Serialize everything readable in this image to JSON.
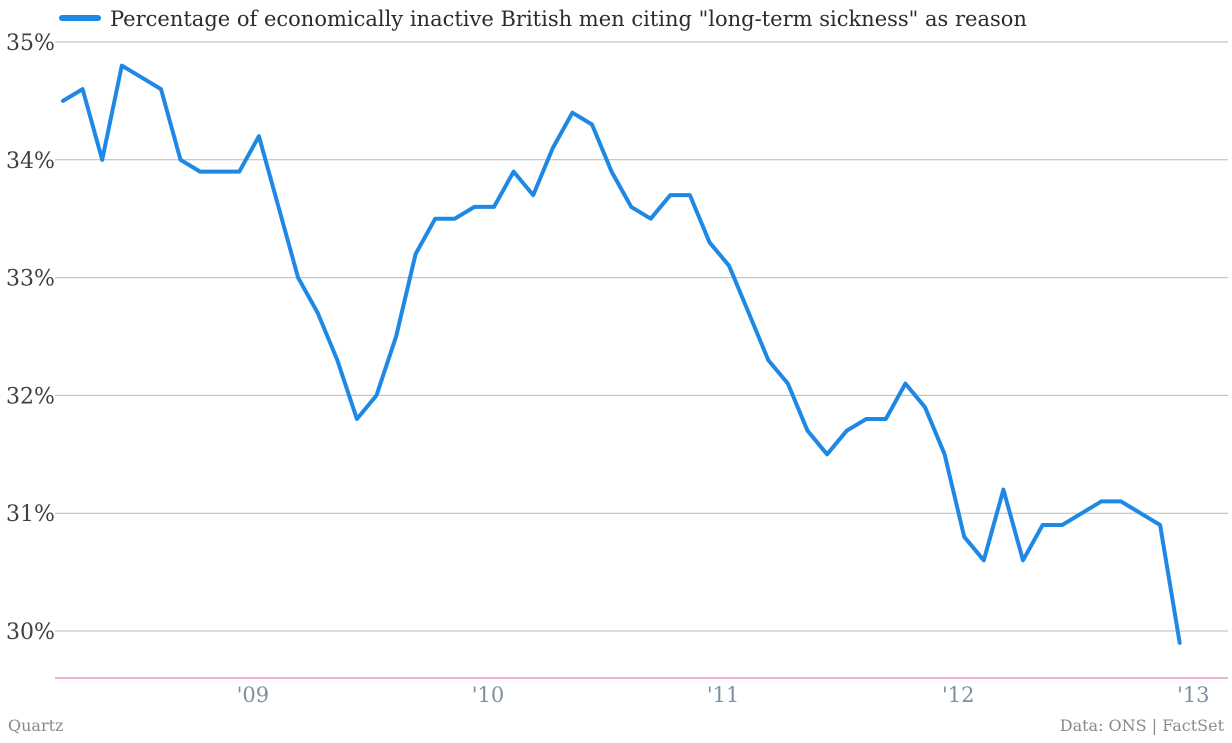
{
  "footer": {
    "brand": "Quartz",
    "source": "Data: ONS | FactSet"
  },
  "colors": {
    "series": "#1f88e5",
    "grid": "#b9b9b9",
    "baseline": "#e060b0"
  },
  "chart_data": {
    "type": "line",
    "legend_position": "top-left",
    "grid": true,
    "ylim": [
      29.6,
      35
    ],
    "y_ticks": [
      30,
      31,
      32,
      33,
      34,
      35
    ],
    "y_tick_labels": [
      "30%",
      "31%",
      "32%",
      "33%",
      "34%",
      "35%"
    ],
    "x_tick_labels": [
      "'09",
      "'10",
      "'11",
      "'12",
      "'13"
    ],
    "x_tick_dates": [
      "2009-01",
      "2010-01",
      "2011-01",
      "2012-01",
      "2013-01"
    ],
    "xlim": [
      "2008-03",
      "2013-03"
    ],
    "series": [
      {
        "name": "Percentage of economically inactive British men citing \"long-term sickness\" as reason",
        "points": [
          [
            "2008-03",
            34.5
          ],
          [
            "2008-04",
            34.6
          ],
          [
            "2008-05",
            34.0
          ],
          [
            "2008-06",
            34.8
          ],
          [
            "2008-07",
            34.7
          ],
          [
            "2008-08",
            34.6
          ],
          [
            "2008-09",
            34.0
          ],
          [
            "2008-10",
            33.9
          ],
          [
            "2008-11",
            33.9
          ],
          [
            "2008-12",
            33.9
          ],
          [
            "2009-01",
            34.2
          ],
          [
            "2009-02",
            33.6
          ],
          [
            "2009-03",
            33.0
          ],
          [
            "2009-04",
            32.7
          ],
          [
            "2009-05",
            32.3
          ],
          [
            "2009-06",
            31.8
          ],
          [
            "2009-07",
            32.0
          ],
          [
            "2009-08",
            32.5
          ],
          [
            "2009-09",
            33.2
          ],
          [
            "2009-10",
            33.5
          ],
          [
            "2009-11",
            33.5
          ],
          [
            "2009-12",
            33.6
          ],
          [
            "2010-01",
            33.6
          ],
          [
            "2010-02",
            33.9
          ],
          [
            "2010-03",
            33.7
          ],
          [
            "2010-04",
            34.1
          ],
          [
            "2010-05",
            34.4
          ],
          [
            "2010-06",
            34.3
          ],
          [
            "2010-07",
            33.9
          ],
          [
            "2010-08",
            33.6
          ],
          [
            "2010-09",
            33.5
          ],
          [
            "2010-10",
            33.7
          ],
          [
            "2010-11",
            33.7
          ],
          [
            "2010-12",
            33.3
          ],
          [
            "2011-01",
            33.1
          ],
          [
            "2011-02",
            32.7
          ],
          [
            "2011-03",
            32.3
          ],
          [
            "2011-04",
            32.1
          ],
          [
            "2011-05",
            31.7
          ],
          [
            "2011-06",
            31.5
          ],
          [
            "2011-07",
            31.7
          ],
          [
            "2011-08",
            31.8
          ],
          [
            "2011-09",
            31.8
          ],
          [
            "2011-10",
            32.1
          ],
          [
            "2011-11",
            31.9
          ],
          [
            "2011-12",
            31.5
          ],
          [
            "2012-01",
            30.8
          ],
          [
            "2012-02",
            30.6
          ],
          [
            "2012-03",
            31.2
          ],
          [
            "2012-04",
            30.6
          ],
          [
            "2012-05",
            30.9
          ],
          [
            "2012-06",
            30.9
          ],
          [
            "2012-07",
            31.0
          ],
          [
            "2012-08",
            31.1
          ],
          [
            "2012-09",
            31.1
          ],
          [
            "2012-10",
            31.0
          ],
          [
            "2012-11",
            30.9
          ],
          [
            "2012-12",
            29.9
          ]
        ]
      }
    ]
  }
}
